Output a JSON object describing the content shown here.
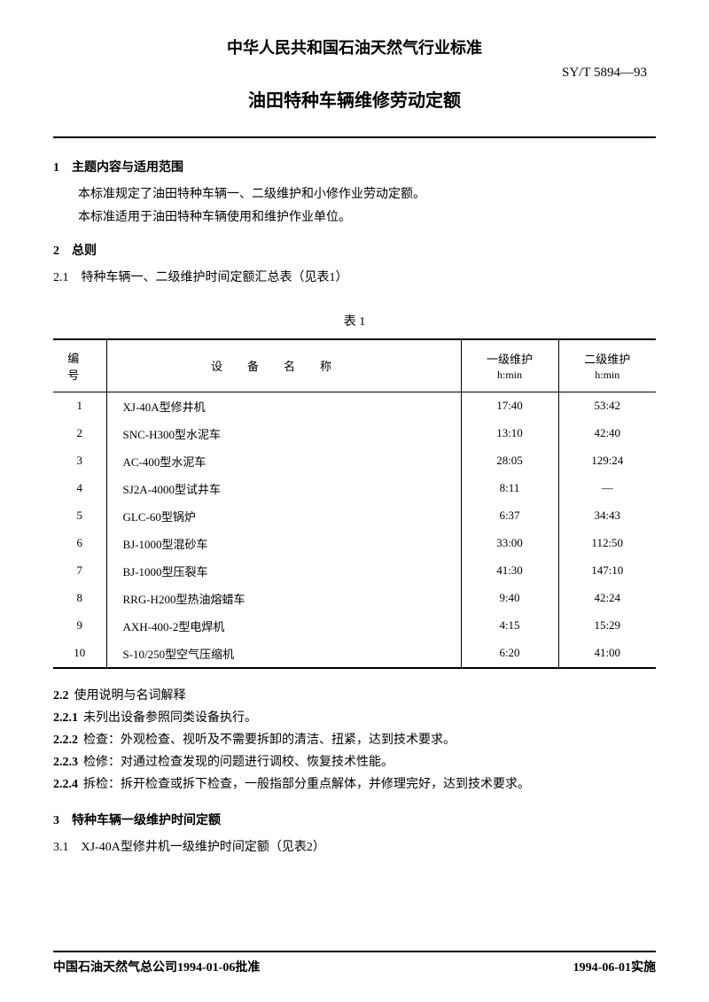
{
  "header": {
    "org_title": "中华人民共和国石油天然气行业标准",
    "standard_code": "SY/T 5894—93",
    "doc_title": "油田特种车辆维修劳动定额"
  },
  "section1": {
    "heading": "1　主题内容与适用范围",
    "p1": "本标准规定了油田特种车辆一、二级维护和小修作业劳动定额。",
    "p2": "本标准适用于油田特种车辆使用和维护作业单位。"
  },
  "section2": {
    "heading": "2　总则",
    "clause21": "2.1　特种车辆一、二级维护时间定额汇总表（见表1）"
  },
  "table1": {
    "caption": "表 1",
    "columns": {
      "idx": "编号",
      "name": "设备名称",
      "col3_top": "一级维护",
      "col3_unit": "h:min",
      "col4_top": "二级维护",
      "col4_unit": "h:min"
    },
    "rows": [
      {
        "idx": "1",
        "name": "XJ-40A型修井机",
        "c3": "17:40",
        "c4": "53:42"
      },
      {
        "idx": "2",
        "name": "SNC-H300型水泥车",
        "c3": "13:10",
        "c4": "42:40"
      },
      {
        "idx": "3",
        "name": "AC-400型水泥车",
        "c3": "28:05",
        "c4": "129:24"
      },
      {
        "idx": "4",
        "name": "SJ2A-4000型试井车",
        "c3": "8:11",
        "c4": "—"
      },
      {
        "idx": "5",
        "name": "GLC-60型锅炉",
        "c3": "6:37",
        "c4": "34:43"
      },
      {
        "idx": "6",
        "name": "BJ-1000型混砂车",
        "c3": "33:00",
        "c4": "112:50"
      },
      {
        "idx": "7",
        "name": "BJ-1000型压裂车",
        "c3": "41:30",
        "c4": "147:10"
      },
      {
        "idx": "8",
        "name": "RRG-H200型热油熔蜡车",
        "c3": "9:40",
        "c4": "42:24"
      },
      {
        "idx": "9",
        "name": "AXH-400-2型电焊机",
        "c3": "4:15",
        "c4": "15:29"
      },
      {
        "idx": "10",
        "name": "S-10/250型空气压缩机",
        "c3": "6:20",
        "c4": "41:00"
      }
    ]
  },
  "notes": {
    "n22": {
      "lbl": "2.2",
      "text": "使用说明与名词解释"
    },
    "n221": {
      "lbl": "2.2.1",
      "text": "未列出设备参照同类设备执行。"
    },
    "n222": {
      "lbl": "2.2.2",
      "text": "检查：外观检查、视听及不需要拆卸的清洁、扭紧，达到技术要求。"
    },
    "n223": {
      "lbl": "2.2.3",
      "text": "检修：对通过检查发现的问题进行调校、恢复技术性能。"
    },
    "n224": {
      "lbl": "2.2.4",
      "text": "拆检：拆开检查或拆下检查，一般指部分重点解体，并修理完好，达到技术要求。"
    }
  },
  "section3": {
    "heading": "3　特种车辆一级维护时间定额",
    "clause31": "3.1　XJ-40A型修井机一级维护时间定额（见表2）"
  },
  "footer": {
    "left": "中国石油天然气总公司1994-01-06批准",
    "right": "1994-06-01实施"
  }
}
